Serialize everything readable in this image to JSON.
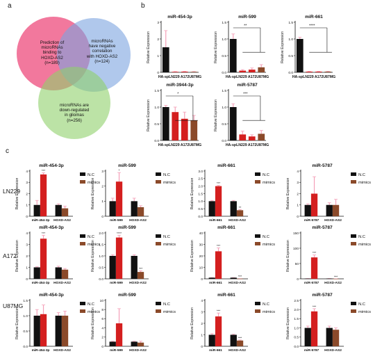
{
  "panel_labels": {
    "a": "a",
    "b": "b",
    "c": "c"
  },
  "row_labels": [
    "LN229",
    "A172",
    "U87MG"
  ],
  "venn": {
    "circles": [
      {
        "lines": [
          "Prediction of",
          "microRNAs",
          "binding to",
          "HOXD-AS2",
          "(n=189)"
        ],
        "color": "#f0608c"
      },
      {
        "lines": [
          "microRNAs",
          "have negative",
          "correlation",
          "with HOXD-AS2",
          "(n=124)"
        ],
        "color": "#7ba3df"
      },
      {
        "lines": [
          "microRNAs are",
          "down-regulated",
          "in gliomas",
          "(n=256)"
        ],
        "color": "#8fd06a"
      }
    ]
  },
  "colors": {
    "black": "#111111",
    "red": "#d41f1f",
    "brown": "#8b4a2a",
    "err": "#f4a0b8"
  },
  "legend": {
    "nc": "N.C",
    "mimics": "mimics"
  },
  "chart_data": [
    {
      "id": "b1",
      "type": "bar",
      "title": "miR-454-3p",
      "ylabel": "Relative Expression",
      "categories": [
        "HA-sp",
        "LN229",
        "A172",
        "U87MG"
      ],
      "values": [
        1.5,
        0.03,
        0.04,
        0.03
      ],
      "errors": [
        1.0,
        0.02,
        0.02,
        0.02
      ],
      "yticks": [
        "0",
        "1",
        "2",
        "3"
      ],
      "ylim": [
        0,
        3
      ],
      "xtick_labels": [
        "HA-sp",
        "LN229",
        "A172",
        "U87MG"
      ],
      "sig": []
    },
    {
      "id": "b2",
      "type": "bar",
      "title": "miR-599",
      "ylabel": "Relative Expression",
      "categories": [
        "HA-sp",
        "LN229",
        "A172",
        "U87MG"
      ],
      "values": [
        1.0,
        0.05,
        0.08,
        0.15
      ],
      "errors": [
        0.15,
        0.03,
        0.05,
        0.08
      ],
      "yticks": [
        "0.0",
        "0.5",
        "1.0",
        "1.5"
      ],
      "ylim": [
        0,
        1.5
      ],
      "xtick_labels": [
        "HA-sp",
        "LN229",
        "A172",
        "U87MG"
      ],
      "sig": [
        "**"
      ]
    },
    {
      "id": "b3",
      "type": "bar",
      "title": "miR-661",
      "ylabel": "Relative Expression",
      "categories": [
        "HA-sp",
        "LN229",
        "A172",
        "U87MG"
      ],
      "values": [
        1.0,
        0.02,
        0.02,
        0.02
      ],
      "errors": [
        0.05,
        0.01,
        0.01,
        0.01
      ],
      "yticks": [
        "0.0",
        "0.5",
        "1.0",
        "1.5"
      ],
      "ylim": [
        0,
        1.5
      ],
      "xtick_labels": [
        "HA-sp",
        "LN229",
        "A172",
        "U87MG"
      ],
      "sig": [
        "****"
      ]
    },
    {
      "id": "b4",
      "type": "bar",
      "title": "miR-3944-3p",
      "ylabel": "Relative Expression",
      "categories": [
        "HA-sp",
        "LN229",
        "A172",
        "U87MG"
      ],
      "values": [
        1.0,
        0.85,
        0.65,
        0.6
      ],
      "errors": [
        0.05,
        0.15,
        0.2,
        0.15
      ],
      "yticks": [
        "0.0",
        "0.5",
        "1.0",
        "1.5"
      ],
      "ylim": [
        0,
        1.5
      ],
      "xtick_labels": [
        "HA-sp",
        "LN229",
        "A172",
        "U87MG"
      ],
      "sig": [
        "*"
      ]
    },
    {
      "id": "b5",
      "type": "bar",
      "title": "miR-5787",
      "ylabel": "Relative Expression",
      "categories": [
        "HA-sp",
        "LN229",
        "A172",
        "U87MG"
      ],
      "values": [
        1.0,
        0.18,
        0.12,
        0.2
      ],
      "errors": [
        0.1,
        0.1,
        0.05,
        0.1
      ],
      "yticks": [
        "0.0",
        "0.5",
        "1.0",
        "1.5"
      ],
      "ylim": [
        0,
        1.5
      ],
      "xtick_labels": [
        "HA-sp",
        "LN229",
        "A172",
        "U87MG"
      ],
      "sig": [
        "***"
      ]
    },
    {
      "id": "c11",
      "type": "bar",
      "title": "miR-454-3p",
      "ylabel": "Relative Expression",
      "categories": [
        "miR-454-3p",
        "HOXD-AS2"
      ],
      "series": [
        {
          "name": "N.C",
          "values": [
            1.0,
            1.0
          ],
          "errors": [
            0.4,
            0.1
          ]
        },
        {
          "name": "mimics",
          "values": [
            3.7,
            0.7
          ],
          "errors": [
            0.15,
            0.2
          ]
        }
      ],
      "yticks": [
        "0",
        "1",
        "2",
        "3",
        "4"
      ],
      "ylim": [
        0,
        4
      ],
      "sig": [
        "***",
        ""
      ],
      "xlabel_first": "miR-454-3p"
    },
    {
      "id": "c12",
      "type": "bar",
      "title": "miR-599",
      "ylabel": "Relative Expression",
      "categories": [
        "miR-599",
        "HOXD-AS2"
      ],
      "series": [
        {
          "name": "N.C",
          "values": [
            1.0,
            1.0
          ],
          "errors": [
            0.2,
            0.2
          ]
        },
        {
          "name": "mimics",
          "values": [
            2.3,
            0.6
          ],
          "errors": [
            0.6,
            0.1
          ]
        }
      ],
      "yticks": [
        "0",
        "1",
        "2",
        "3"
      ],
      "ylim": [
        0,
        3
      ],
      "sig": [
        "*",
        ""
      ],
      "xlabel_first": "miR-599"
    },
    {
      "id": "c13",
      "type": "bar",
      "title": "miR-661",
      "ylabel": "Relative Expression",
      "categories": [
        "miR-661",
        "HOXD-AS2"
      ],
      "series": [
        {
          "name": "N.C",
          "values": [
            1.0,
            1.0
          ],
          "errors": [
            0.05,
            0.05
          ]
        },
        {
          "name": "mimics",
          "values": [
            2.0,
            0.4
          ],
          "errors": [
            0.05,
            0.05
          ]
        }
      ],
      "yticks": [
        "0.0",
        "0.5",
        "1.0",
        "1.5",
        "2.0",
        "2.5",
        "3.0"
      ],
      "ylim": [
        0,
        3
      ],
      "sig": [
        "***",
        "**"
      ],
      "xlabel_first": "miR-661"
    },
    {
      "id": "c14",
      "type": "bar",
      "title": "miR-5787",
      "ylabel": "Relative Expression",
      "categories": [
        "miR-5787",
        "HOXD-AS2"
      ],
      "series": [
        {
          "name": "N.C",
          "values": [
            1.0,
            1.0
          ],
          "errors": [
            0.1,
            0.2
          ]
        },
        {
          "name": "mimics",
          "values": [
            2.0,
            1.0
          ],
          "errors": [
            1.5,
            0.5
          ]
        }
      ],
      "yticks": [
        "0",
        "1",
        "2",
        "3",
        "4"
      ],
      "ylim": [
        0,
        4
      ],
      "sig": [
        "",
        ""
      ],
      "xlabel_first": "miR-5787"
    },
    {
      "id": "c21",
      "type": "bar",
      "title": "miR-454-3p",
      "ylabel": "Relative Expression",
      "categories": [
        "miR-454-3p",
        "HOXD-AS2"
      ],
      "series": [
        {
          "name": "N.C",
          "values": [
            1.0,
            1.0
          ],
          "errors": [
            0.05,
            0.1
          ]
        },
        {
          "name": "mimics",
          "values": [
            3.5,
            0.8
          ],
          "errors": [
            0.3,
            0.1
          ]
        }
      ],
      "yticks": [
        "0",
        "1",
        "2",
        "3",
        "4"
      ],
      "ylim": [
        0,
        4
      ],
      "sig": [
        "***",
        ""
      ],
      "xlabel_first": "miR-454-3p"
    },
    {
      "id": "c22",
      "type": "bar",
      "title": "miR-599",
      "ylabel": "Relative Expression",
      "categories": [
        "miR-599",
        "HOXD-AS2"
      ],
      "series": [
        {
          "name": "N.C",
          "values": [
            1.0,
            1.0
          ],
          "errors": [
            0.05,
            0.05
          ]
        },
        {
          "name": "mimics",
          "values": [
            1.8,
            0.3
          ],
          "errors": [
            0.1,
            0.05
          ]
        }
      ],
      "yticks": [
        "0.0",
        "0.5",
        "1.0",
        "1.5",
        "2.0"
      ],
      "ylim": [
        0,
        2
      ],
      "sig": [
        "****",
        "***"
      ],
      "xlabel_first": "miR-599"
    },
    {
      "id": "c23",
      "type": "bar",
      "title": "miR-661",
      "ylabel": "Relative Expression",
      "categories": [
        "miR-661",
        "HOXD-AS2"
      ],
      "series": [
        {
          "name": "N.C",
          "values": [
            1.0,
            1.0
          ],
          "errors": [
            0.1,
            0.05
          ]
        },
        {
          "name": "mimics",
          "values": [
            24,
            0.15
          ],
          "errors": [
            3,
            0.05
          ]
        }
      ],
      "yticks": [
        "0",
        "10",
        "20",
        "30",
        "40"
      ],
      "ylim": [
        0,
        40
      ],
      "sig": [
        "***",
        "***"
      ],
      "xlabel_first": "miR-661"
    },
    {
      "id": "c24",
      "type": "bar",
      "title": "miR-5787",
      "ylabel": "Relative Expression",
      "categories": [
        "miR-5787",
        "HOXD-AS2"
      ],
      "series": [
        {
          "name": "N.C",
          "values": [
            1.0,
            1.0
          ],
          "errors": [
            0.1,
            0.2
          ]
        },
        {
          "name": "mimics",
          "values": [
            70,
            0.2
          ],
          "errors": [
            8,
            0.1
          ]
        }
      ],
      "yticks": [
        "0",
        "50",
        "100",
        "150"
      ],
      "ylim": [
        0,
        150
      ],
      "sig": [
        "***",
        "***"
      ],
      "xlabel_first": "miR-5787"
    },
    {
      "id": "c31",
      "type": "bar",
      "title": "miR-454-3p",
      "ylabel": "Relative Expression",
      "categories": [
        "miR-454-3p",
        "HOXD-AS2"
      ],
      "series": [
        {
          "name": "N.C",
          "values": [
            1.0,
            1.0
          ],
          "errors": [
            0.2,
            0.1
          ]
        },
        {
          "name": "mimics",
          "values": [
            1.05,
            1.0
          ],
          "errors": [
            0.3,
            0.15
          ]
        }
      ],
      "yticks": [
        "0.0",
        "0.5",
        "1.0",
        "1.5"
      ],
      "ylim": [
        0,
        1.5
      ],
      "sig": [
        "",
        ""
      ],
      "xlabel_first": "miR-454-3p"
    },
    {
      "id": "c32",
      "type": "bar",
      "title": "miR-599",
      "ylabel": "Relative Expression",
      "categories": [
        "miR-599",
        "HOXD-AS2"
      ],
      "series": [
        {
          "name": "N.C",
          "values": [
            1.0,
            1.0
          ],
          "errors": [
            0.1,
            0.1
          ]
        },
        {
          "name": "mimics",
          "values": [
            5.0,
            0.8
          ],
          "errors": [
            3.2,
            0.3
          ]
        }
      ],
      "yticks": [
        "0",
        "2",
        "4",
        "6",
        "8",
        "10"
      ],
      "ylim": [
        0,
        10
      ],
      "sig": [
        "",
        ""
      ],
      "xlabel_first": "miR-599"
    },
    {
      "id": "c33",
      "type": "bar",
      "title": "miR-661",
      "ylabel": "Relative Expression",
      "categories": [
        "miR-661",
        "HOXD-AS2"
      ],
      "series": [
        {
          "name": "N.C",
          "values": [
            1.0,
            1.0
          ],
          "errors": [
            0.1,
            0.05
          ]
        },
        {
          "name": "mimics",
          "values": [
            2.6,
            0.5
          ],
          "errors": [
            0.3,
            0.05
          ]
        }
      ],
      "yticks": [
        "0",
        "1",
        "2",
        "3",
        "4"
      ],
      "ylim": [
        0,
        4
      ],
      "sig": [
        "***",
        "***"
      ],
      "xlabel_first": "miR-661"
    },
    {
      "id": "c34",
      "type": "bar",
      "title": "miR-5787",
      "ylabel": "Relative Expression",
      "categories": [
        "miR-5787",
        "HOXD-AS2"
      ],
      "series": [
        {
          "name": "N.C",
          "values": [
            1.0,
            1.0
          ],
          "errors": [
            0.1,
            0.1
          ]
        },
        {
          "name": "mimics",
          "values": [
            1.9,
            0.9
          ],
          "errors": [
            0.15,
            0.1
          ]
        }
      ],
      "yticks": [
        "0.0",
        "0.5",
        "1.0",
        "1.5",
        "2.0",
        "2.5"
      ],
      "ylim": [
        0,
        2.5
      ],
      "sig": [
        "***",
        ""
      ],
      "xlabel_first": "miR-5787"
    }
  ]
}
